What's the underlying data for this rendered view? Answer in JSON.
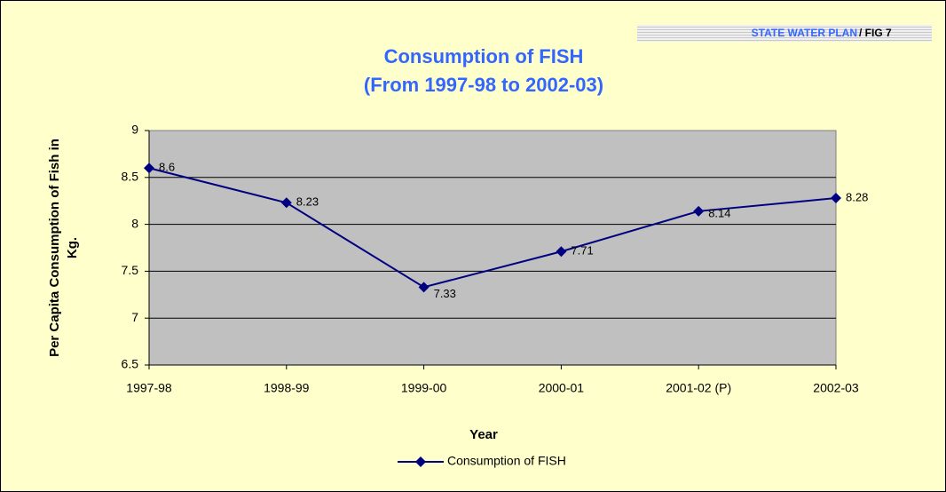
{
  "badge": {
    "source": "STATE WATER PLAN",
    "figure": "/ FIG 7"
  },
  "chart_data": {
    "type": "line",
    "title": [
      "Consumption of FISH",
      "(From 1997-98 to 2002-03)"
    ],
    "y_label": [
      "Per Capita Consumption of Fish in",
      "Kg."
    ],
    "x_label": "Year",
    "categories": [
      "1997-98",
      "1998-99",
      "1999-00",
      "2000-01",
      "2001-02 (P)",
      "2002-03"
    ],
    "series": [
      {
        "name": "Consumption of FISH",
        "color": "#000080",
        "values": [
          8.6,
          8.23,
          7.33,
          7.71,
          8.14,
          8.28
        ]
      }
    ],
    "ylim": [
      6.5,
      9
    ],
    "yticks": [
      6.5,
      7,
      7.5,
      8,
      8.5,
      9
    ],
    "grid": true
  }
}
